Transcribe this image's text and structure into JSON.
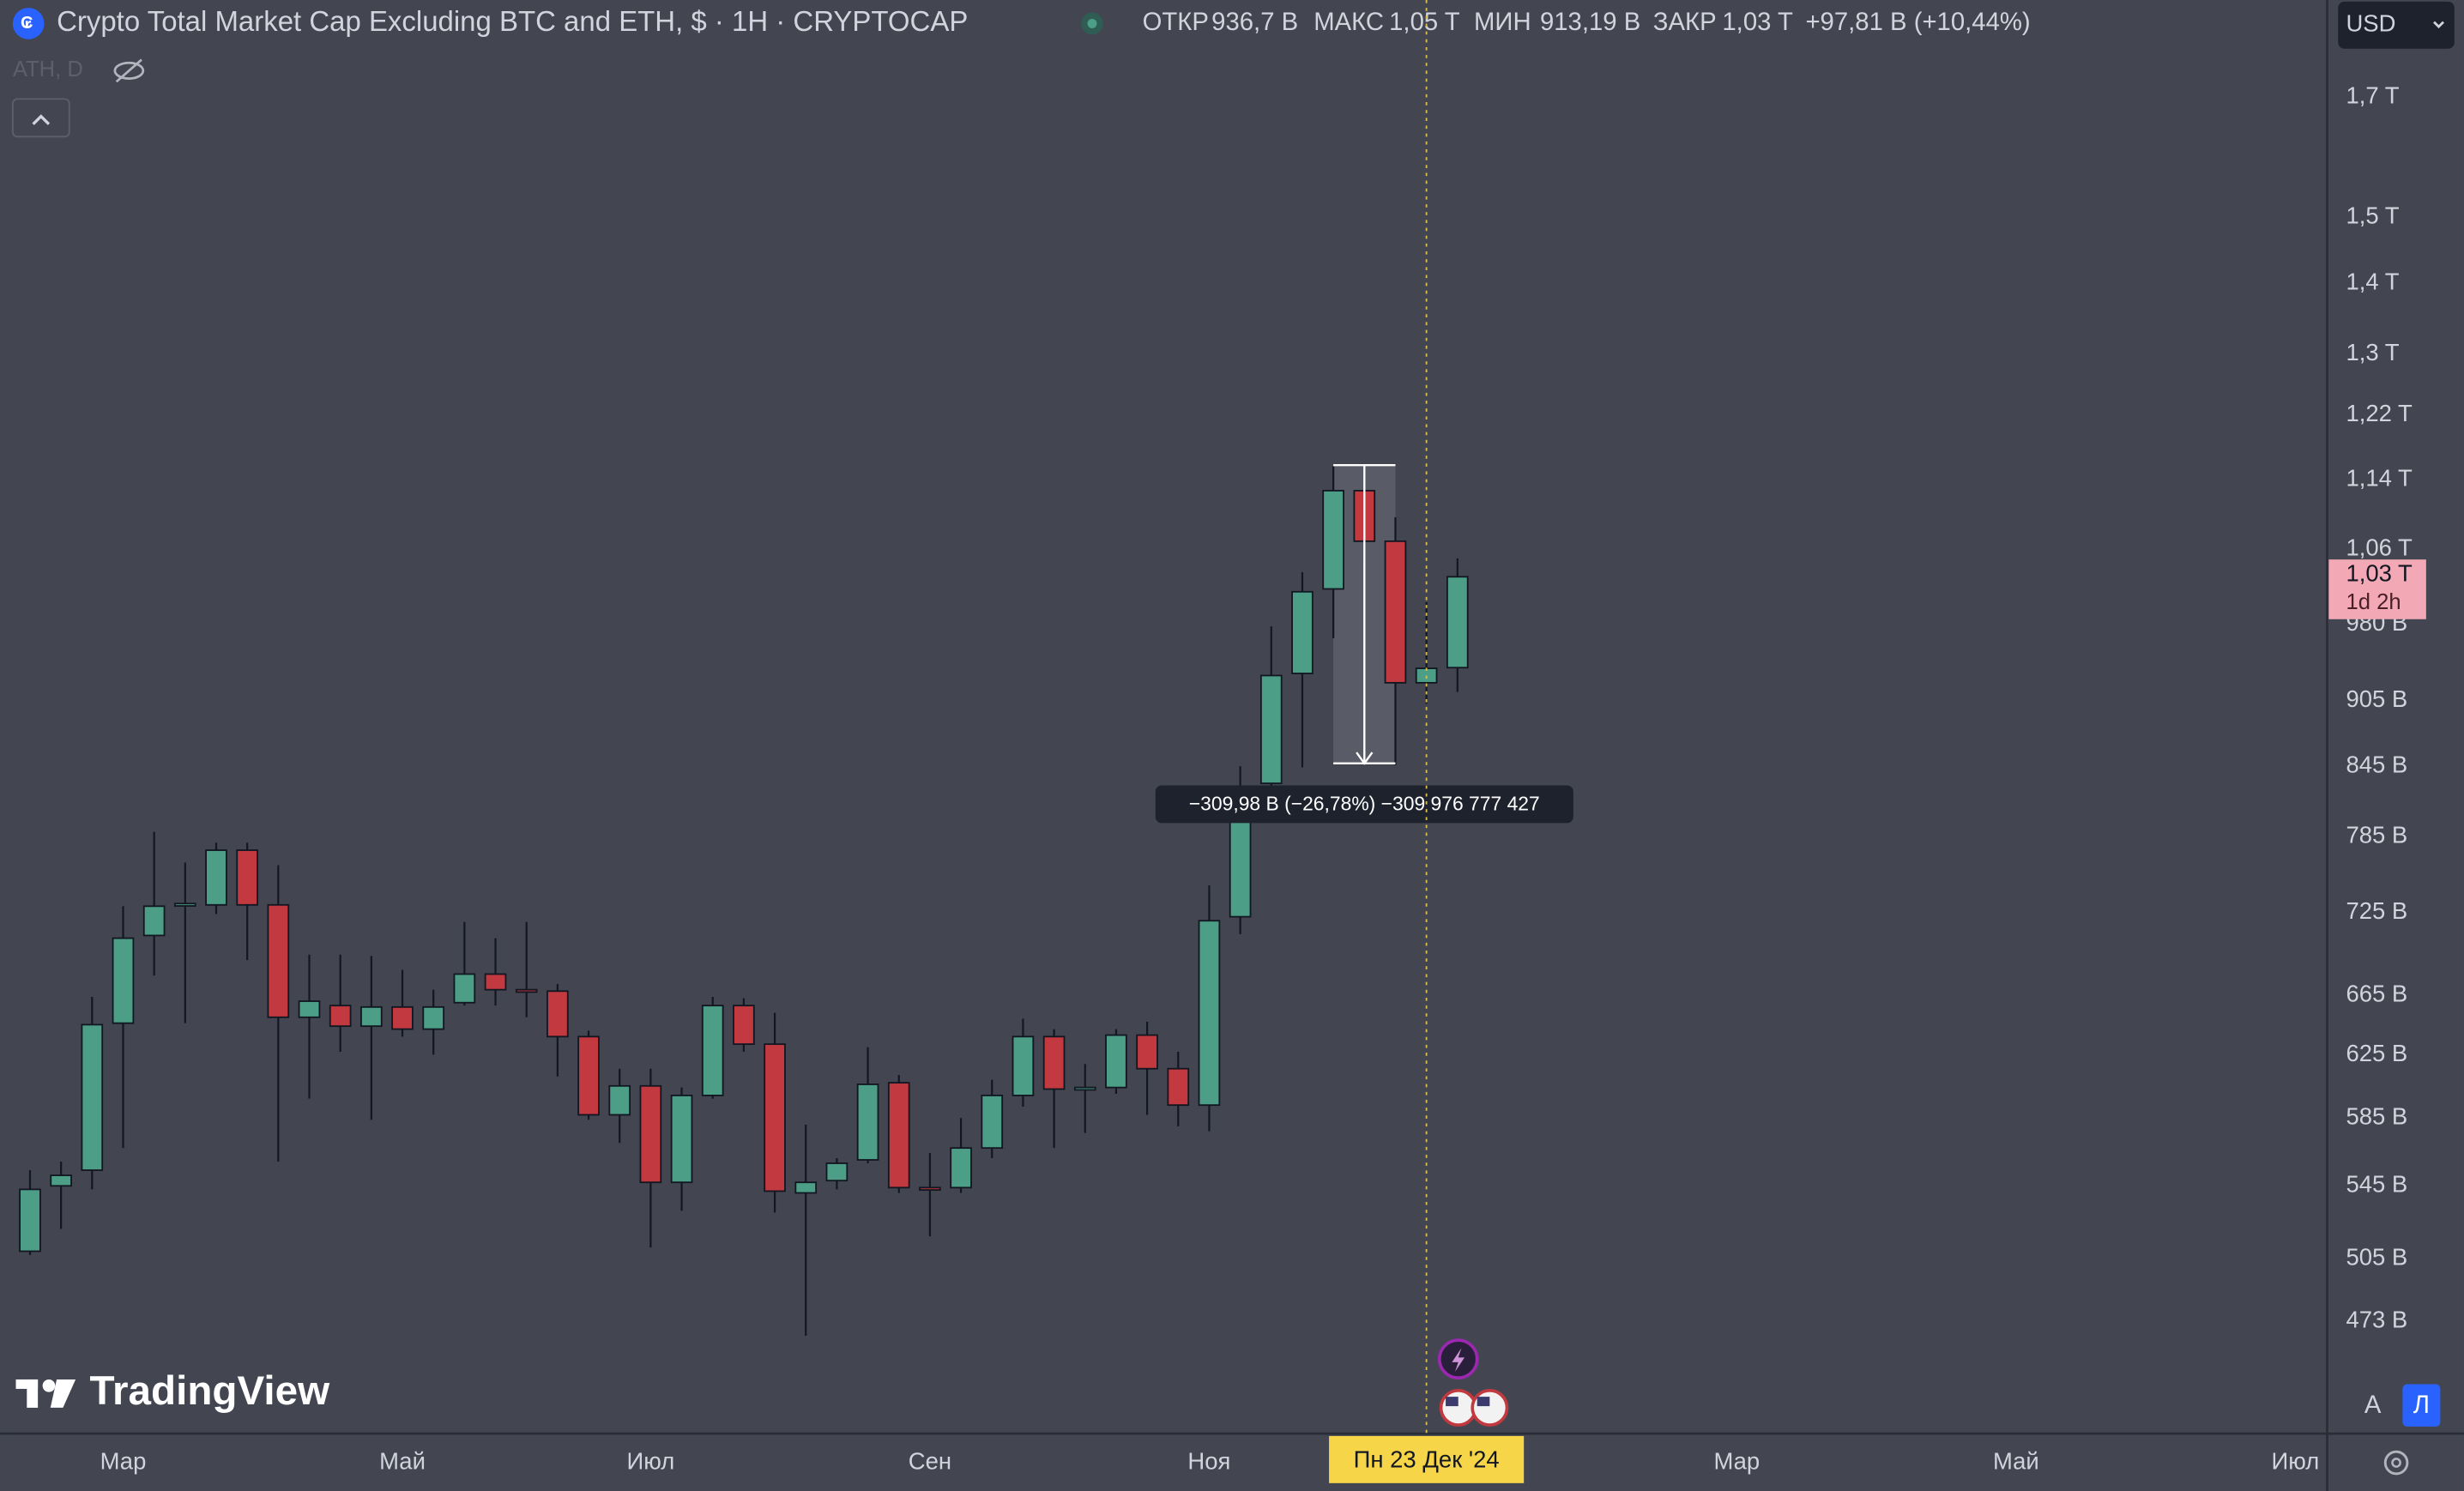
{
  "header": {
    "title": "Crypto Total Market Cap Excluding BTC and ETH, $ · 1H · CRYPTOCAP",
    "open_label": "ОТКР",
    "open": "936,7 B",
    "high_label": "МАКС",
    "high": "1,05 T",
    "low_label": "МИН",
    "low": "913,19 B",
    "close_label": "ЗАКР",
    "close": "1,03 T",
    "change": "+97,81 B (+10,44%)",
    "indicator": "ATH, D",
    "currency": "USD"
  },
  "chart_data": {
    "type": "candlestick",
    "log_scale": true,
    "up_color": "#4c9e86",
    "down_color": "#c2393f",
    "ylim": [
      421,
      1882
    ],
    "yticks": [
      {
        "value": 1700,
        "label": "1,7 T"
      },
      {
        "value": 1500,
        "label": "1,5 T"
      },
      {
        "value": 1400,
        "label": "1,4 T"
      },
      {
        "value": 1300,
        "label": "1,3 T"
      },
      {
        "value": 1220,
        "label": "1,22 T"
      },
      {
        "value": 1140,
        "label": "1,14 T"
      },
      {
        "value": 1060,
        "label": "1,06 T"
      },
      {
        "value": 980,
        "label": "980 B"
      },
      {
        "value": 905,
        "label": "905 B"
      },
      {
        "value": 845,
        "label": "845 B"
      },
      {
        "value": 785,
        "label": "785 B"
      },
      {
        "value": 725,
        "label": "725 B"
      },
      {
        "value": 665,
        "label": "665 B"
      },
      {
        "value": 625,
        "label": "625 B"
      },
      {
        "value": 585,
        "label": "585 B"
      },
      {
        "value": 545,
        "label": "545 B"
      },
      {
        "value": 505,
        "label": "505 B"
      },
      {
        "value": 473,
        "label": "473 B"
      }
    ],
    "xticks": [
      {
        "value": 3,
        "label": "Мар"
      },
      {
        "value": 12,
        "label": "Май"
      },
      {
        "value": 20,
        "label": "Июл"
      },
      {
        "value": 29,
        "label": "Сен"
      },
      {
        "value": 38,
        "label": "Ноя"
      },
      {
        "value": 55,
        "label": "Мар"
      },
      {
        "value": 64,
        "label": "Май"
      },
      {
        "value": 73,
        "label": "Июл"
      }
    ],
    "crosshair": {
      "value": 45,
      "label": "Пн 23 Дек '24"
    },
    "price_tag": {
      "value": 1030,
      "label": "1,03 T",
      "countdown": "1d 2h"
    },
    "measure": {
      "start": 42,
      "end": 44,
      "from": 1157.5,
      "to": 847.52,
      "label": "−309,98 B (−26,78%) −309 976 777 427"
    },
    "candles": [
      {
        "open": 509,
        "high": 554,
        "low": 507,
        "close": 543
      },
      {
        "open": 545,
        "high": 559,
        "low": 521,
        "close": 551
      },
      {
        "open": 554,
        "high": 664,
        "low": 543,
        "close": 645
      },
      {
        "open": 646,
        "high": 730,
        "low": 567,
        "close": 706
      },
      {
        "open": 708,
        "high": 789,
        "low": 679,
        "close": 730
      },
      {
        "open": 731,
        "high": 764,
        "low": 646,
        "close": 732
      },
      {
        "open": 731,
        "high": 780,
        "low": 724,
        "close": 774
      },
      {
        "open": 774,
        "high": 780,
        "low": 690,
        "close": 731
      },
      {
        "open": 731,
        "high": 762,
        "low": 559,
        "close": 650
      },
      {
        "open": 650,
        "high": 694,
        "low": 597,
        "close": 661
      },
      {
        "open": 658,
        "high": 694,
        "low": 627,
        "close": 644
      },
      {
        "open": 644,
        "high": 693,
        "low": 584,
        "close": 657
      },
      {
        "open": 657,
        "high": 683,
        "low": 637,
        "close": 642
      },
      {
        "open": 642,
        "high": 669,
        "low": 625,
        "close": 657
      },
      {
        "open": 660,
        "high": 718,
        "low": 658,
        "close": 680
      },
      {
        "open": 680,
        "high": 706,
        "low": 658,
        "close": 669
      },
      {
        "open": 669,
        "high": 718,
        "low": 650,
        "close": 668
      },
      {
        "open": 668,
        "high": 673,
        "low": 611,
        "close": 637
      },
      {
        "open": 637,
        "high": 641,
        "low": 584,
        "close": 587
      },
      {
        "open": 587,
        "high": 616,
        "low": 570,
        "close": 605
      },
      {
        "open": 605,
        "high": 616,
        "low": 511,
        "close": 547
      },
      {
        "open": 547,
        "high": 604,
        "low": 531,
        "close": 599
      },
      {
        "open": 599,
        "high": 664,
        "low": 597,
        "close": 658
      },
      {
        "open": 658,
        "high": 663,
        "low": 627,
        "close": 632
      },
      {
        "open": 632,
        "high": 653,
        "low": 530,
        "close": 542
      },
      {
        "open": 541,
        "high": 581,
        "low": 466,
        "close": 547
      },
      {
        "open": 548,
        "high": 561,
        "low": 543,
        "close": 558
      },
      {
        "open": 560,
        "high": 630,
        "low": 558,
        "close": 606
      },
      {
        "open": 607,
        "high": 612,
        "low": 541,
        "close": 544
      },
      {
        "open": 544,
        "high": 564,
        "low": 517,
        "close": 543
      },
      {
        "open": 544,
        "high": 585,
        "low": 541,
        "close": 567
      },
      {
        "open": 567,
        "high": 609,
        "low": 561,
        "close": 599
      },
      {
        "open": 599,
        "high": 649,
        "low": 592,
        "close": 637
      },
      {
        "open": 637,
        "high": 642,
        "low": 567,
        "close": 603
      },
      {
        "open": 603,
        "high": 619,
        "low": 576,
        "close": 604
      },
      {
        "open": 604,
        "high": 642,
        "low": 600,
        "close": 638
      },
      {
        "open": 638,
        "high": 647,
        "low": 587,
        "close": 616
      },
      {
        "open": 616,
        "high": 627,
        "low": 580,
        "close": 593
      },
      {
        "open": 593,
        "high": 746,
        "low": 577,
        "close": 719
      },
      {
        "open": 722,
        "high": 845,
        "low": 709,
        "close": 810
      },
      {
        "open": 830,
        "high": 978,
        "low": 822,
        "close": 929
      },
      {
        "open": 931,
        "high": 1035,
        "low": 844,
        "close": 1014
      },
      {
        "open": 1017,
        "high": 1156,
        "low": 966,
        "close": 1127
      },
      {
        "open": 1127,
        "high": 1156,
        "low": 1044,
        "close": 1069
      },
      {
        "open": 1069,
        "high": 1096,
        "low": 846,
        "close": 922
      },
      {
        "open": 922,
        "high": 1003,
        "low": 902,
        "close": 936
      },
      {
        "open": 936.7,
        "high": 1050,
        "low": 913.19,
        "close": 1030
      }
    ]
  },
  "footer": {
    "logo": "TradingView",
    "auto": "A",
    "log": "Л"
  }
}
